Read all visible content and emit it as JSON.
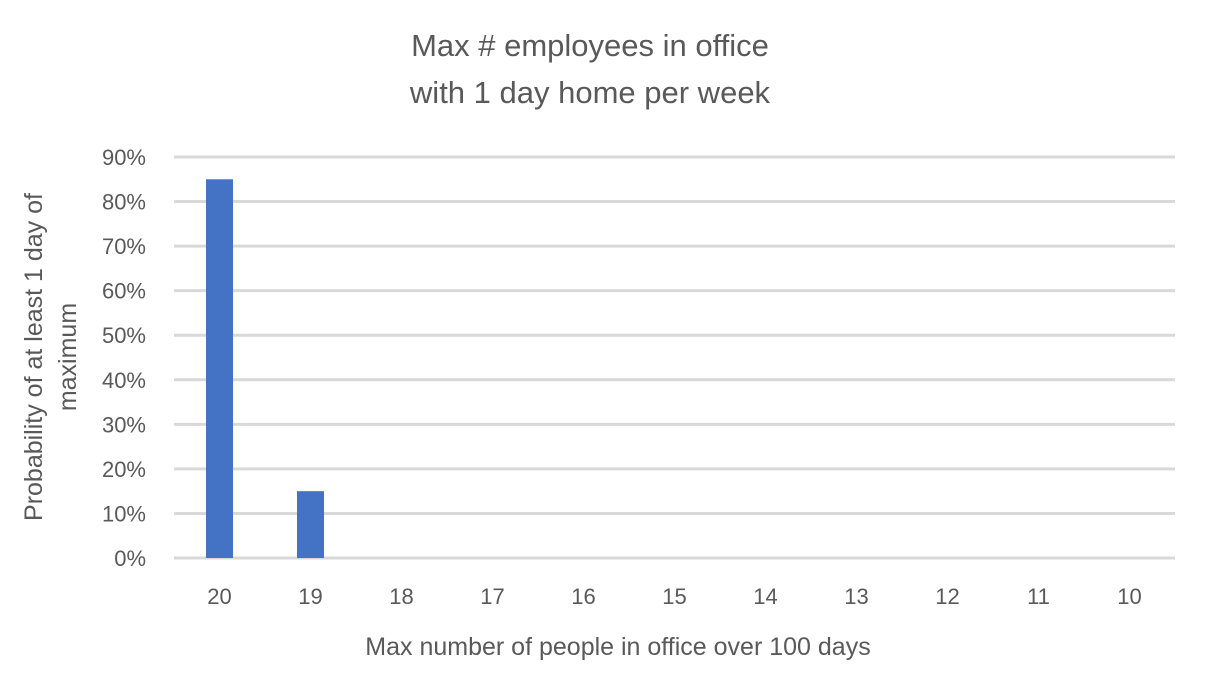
{
  "chart_data": {
    "type": "bar",
    "title_lines": [
      "Max # employees in office",
      "with 1 day home per week"
    ],
    "xlabel": "Max number of people in office over 100 days",
    "ylabel_lines": [
      "Probability of at least 1 day of",
      "maximum"
    ],
    "categories": [
      "20",
      "19",
      "18",
      "17",
      "16",
      "15",
      "14",
      "13",
      "12",
      "11",
      "10"
    ],
    "values": [
      85,
      15,
      0,
      0,
      0,
      0,
      0,
      0,
      0,
      0,
      0
    ],
    "yticks": [
      "0%",
      "10%",
      "20%",
      "30%",
      "40%",
      "50%",
      "60%",
      "70%",
      "80%",
      "90%"
    ],
    "ylim": [
      0,
      90
    ],
    "grid": true,
    "bar_color": "#4472C4",
    "grid_color": "#D9D9D9",
    "text_color": "#595959"
  }
}
